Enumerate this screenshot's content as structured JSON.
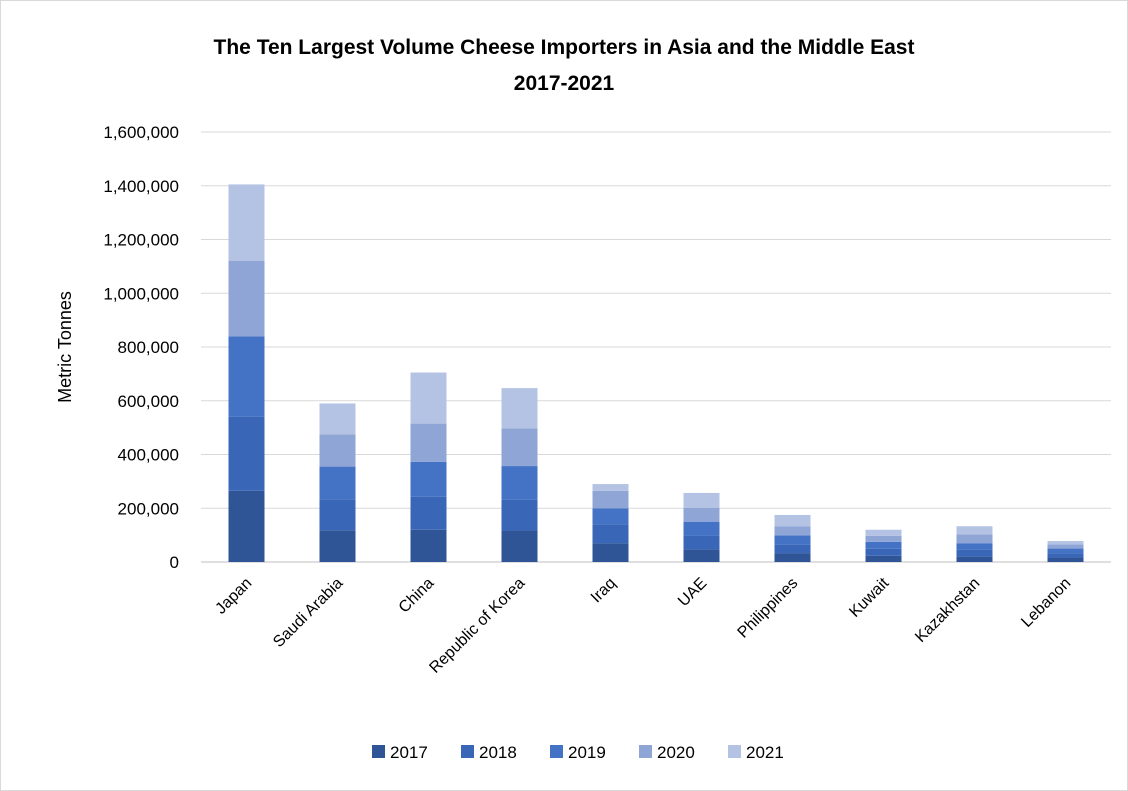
{
  "chart_data": {
    "type": "bar",
    "stacked": true,
    "title": "The Ten Largest Volume Cheese Importers in Asia and the Middle East",
    "subtitle": "2017-2021",
    "xlabel": "",
    "ylabel": "Metric Tonnes",
    "ylim": [
      0,
      1600000
    ],
    "yticks": [
      0,
      200000,
      400000,
      600000,
      800000,
      1000000,
      1200000,
      1400000,
      1600000
    ],
    "ytick_labels": [
      "0",
      "200,000",
      "400,000",
      "600,000",
      "800,000",
      "1,000,000",
      "1,200,000",
      "1,400,000",
      "1,600,000"
    ],
    "grid": true,
    "legend_position": "bottom",
    "categories": [
      "Japan",
      "Saudi Arabia",
      "China",
      "Republic of Korea",
      "Iraq",
      "UAE",
      "Philippines",
      "Kuwait",
      "Kazakhstan",
      "Lebanon"
    ],
    "series": [
      {
        "name": "2017",
        "color": "#2f5597",
        "values": [
          265000,
          118000,
          120000,
          117000,
          70000,
          47000,
          33000,
          23000,
          20000,
          17000
        ]
      },
      {
        "name": "2018",
        "color": "#3a66b8",
        "values": [
          275000,
          115000,
          123000,
          115000,
          70000,
          50000,
          33000,
          26000,
          25000,
          15000
        ]
      },
      {
        "name": "2019",
        "color": "#4472c4",
        "values": [
          300000,
          122000,
          130000,
          125000,
          60000,
          53000,
          33000,
          26000,
          25000,
          18000
        ]
      },
      {
        "name": "2020",
        "color": "#8fa5d6",
        "values": [
          280000,
          120000,
          142000,
          140000,
          65000,
          52000,
          33000,
          22000,
          33000,
          16000
        ]
      },
      {
        "name": "2021",
        "color": "#b4c3e3",
        "values": [
          285000,
          115000,
          190000,
          150000,
          25000,
          55000,
          43000,
          23000,
          30000,
          12000
        ]
      }
    ]
  }
}
